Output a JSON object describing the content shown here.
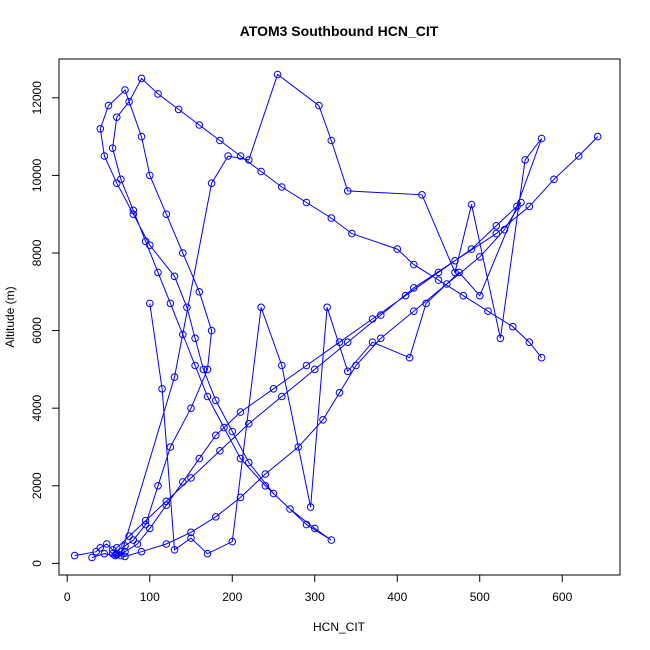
{
  "chart_data": {
    "type": "line",
    "title": "ATOM3 Southbound HCN_CIT",
    "xlabel": "HCN_CIT",
    "ylabel": "Altitude (m)",
    "xlim": [
      -10,
      670
    ],
    "ylim": [
      -300,
      13000
    ],
    "xticks": [
      0,
      100,
      200,
      300,
      400,
      500,
      600
    ],
    "yticks": [
      0,
      2000,
      4000,
      6000,
      8000,
      10000,
      12000
    ],
    "xtick_labels": [
      "0",
      "100",
      "200",
      "300",
      "400",
      "500",
      "600"
    ],
    "ytick_labels": [
      "0",
      "2000",
      "4000",
      "6000",
      "8000",
      "10000",
      "12000"
    ],
    "grid": false,
    "legend": "none",
    "marker": "open-circle",
    "color": "#0000ff",
    "series": [
      {
        "x": [
          9,
          35,
          40,
          48,
          55,
          60,
          65,
          70,
          80,
          95,
          110,
          125,
          150,
          170,
          175,
          160,
          140,
          120,
          100,
          90,
          70,
          50,
          40,
          45,
          60,
          80,
          100,
          130,
          145,
          155,
          165,
          180,
          200,
          220,
          250,
          290,
          320,
          300,
          270,
          240,
          210,
          190,
          170,
          155,
          140,
          125,
          110,
          95,
          80,
          65,
          55,
          60,
          75,
          90,
          110,
          135,
          160,
          185,
          210,
          235,
          260,
          290,
          320,
          345,
          400,
          420,
          450,
          480,
          510,
          540,
          560,
          575
        ],
        "y": [
          200,
          300,
          400,
          500,
          350,
          250,
          300,
          450,
          600,
          1000,
          2000,
          3000,
          4000,
          5000,
          6000,
          7000,
          8000,
          9000,
          10000,
          11000,
          12200,
          11800,
          11200,
          10500,
          9800,
          9000,
          8200,
          7400,
          6600,
          5800,
          5000,
          4200,
          3400,
          2600,
          1800,
          1000,
          600,
          900,
          1400,
          2000,
          2700,
          3500,
          4300,
          5100,
          5900,
          6700,
          7500,
          8300,
          9100,
          9900,
          10700,
          11500,
          11900,
          12500,
          12100,
          11700,
          11300,
          10900,
          10500,
          10100,
          9700,
          9300,
          8900,
          8500,
          8100,
          7700,
          7300,
          6900,
          6500,
          6100,
          5700,
          5300
        ]
      },
      {
        "x": [
          30,
          45,
          58,
          70,
          90,
          120,
          150,
          180,
          210,
          240,
          280,
          310,
          330,
          350,
          380,
          420,
          460,
          500,
          530,
          550,
          520,
          490,
          450,
          410,
          370,
          330,
          290,
          250,
          210,
          180,
          160,
          140,
          120,
          100,
          85,
          70,
          60,
          55,
          60,
          75,
          95,
          120,
          150,
          185,
          220,
          260,
          300,
          340,
          380,
          420,
          470,
          520,
          560,
          590,
          620,
          643
        ],
        "y": [
          150,
          250,
          200,
          180,
          300,
          500,
          800,
          1200,
          1700,
          2300,
          3000,
          3700,
          4400,
          5100,
          5800,
          6500,
          7200,
          7900,
          8600,
          9300,
          8700,
          8100,
          7500,
          6900,
          6300,
          5700,
          5100,
          4500,
          3900,
          3300,
          2700,
          2100,
          1500,
          900,
          500,
          300,
          220,
          250,
          400,
          700,
          1100,
          1600,
          2200,
          2900,
          3600,
          4300,
          5000,
          5700,
          6400,
          7100,
          7800,
          8500,
          9200,
          9900,
          10500,
          11000
        ]
      },
      {
        "x": [
          65,
          130,
          175,
          195,
          220,
          255,
          305,
          320,
          340,
          430,
          470,
          490,
          525,
          555,
          575,
          545,
          500,
          475,
          435,
          415,
          370,
          340,
          315,
          295,
          260,
          235,
          200,
          170,
          150,
          130,
          115,
          100
        ],
        "y": [
          200,
          4800,
          9800,
          10500,
          10400,
          12600,
          11800,
          10900,
          9600,
          9500,
          7500,
          9250,
          5800,
          10400,
          10950,
          9200,
          6900,
          7500,
          6700,
          5300,
          5700,
          4950,
          6600,
          1450,
          5100,
          6600,
          560,
          250,
          650,
          350,
          4500,
          6700
        ]
      }
    ]
  }
}
